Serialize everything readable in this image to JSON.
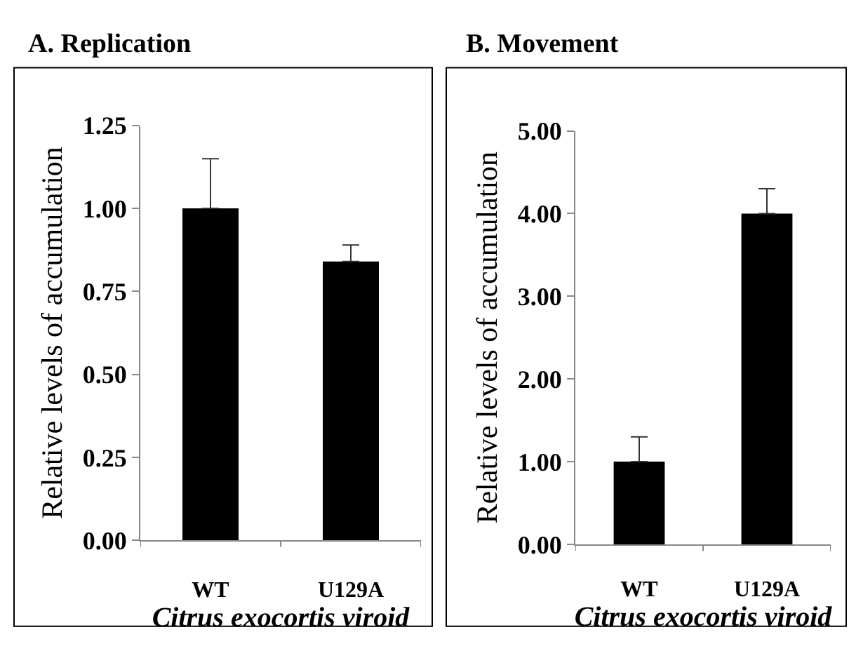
{
  "chart_data": [
    {
      "type": "bar",
      "title": "A. Replication",
      "categories": [
        "WT",
        "U129A"
      ],
      "values": [
        1.0,
        0.84
      ],
      "errors": [
        [
          1.0,
          1.15
        ],
        [
          0.84,
          0.89
        ]
      ],
      "color": "#000000",
      "ylim": [
        0,
        1.25
      ],
      "yticks": [
        {
          "value": 0,
          "label": "0.00"
        },
        {
          "value": 0.25,
          "label": "0.25"
        },
        {
          "value": 0.5,
          "label": "0.50"
        },
        {
          "value": 0.75,
          "label": "0.75"
        },
        {
          "value": 1.0,
          "label": "1.00"
        },
        {
          "value": 1.25,
          "label": "1.25"
        }
      ],
      "ylabel": "Relative levels of accumulation",
      "xlabel": "Citrus exocortis viroid"
    },
    {
      "type": "bar",
      "title": "B. Movement",
      "categories": [
        "WT",
        "U129A"
      ],
      "values": [
        1.0,
        4.0
      ],
      "errors": [
        [
          1.0,
          1.3
        ],
        [
          4.0,
          4.3
        ]
      ],
      "color": "#000000",
      "ylim": [
        0,
        5.0
      ],
      "yticks": [
        {
          "value": 0,
          "label": "0.00"
        },
        {
          "value": 1,
          "label": "1.00"
        },
        {
          "value": 2,
          "label": "2.00"
        },
        {
          "value": 3,
          "label": "3.00"
        },
        {
          "value": 4,
          "label": "4.00"
        },
        {
          "value": 5,
          "label": "5.00"
        }
      ],
      "ylabel": "Relative levels of accumulation",
      "xlabel": "Citrus exocortis viroid"
    }
  ]
}
